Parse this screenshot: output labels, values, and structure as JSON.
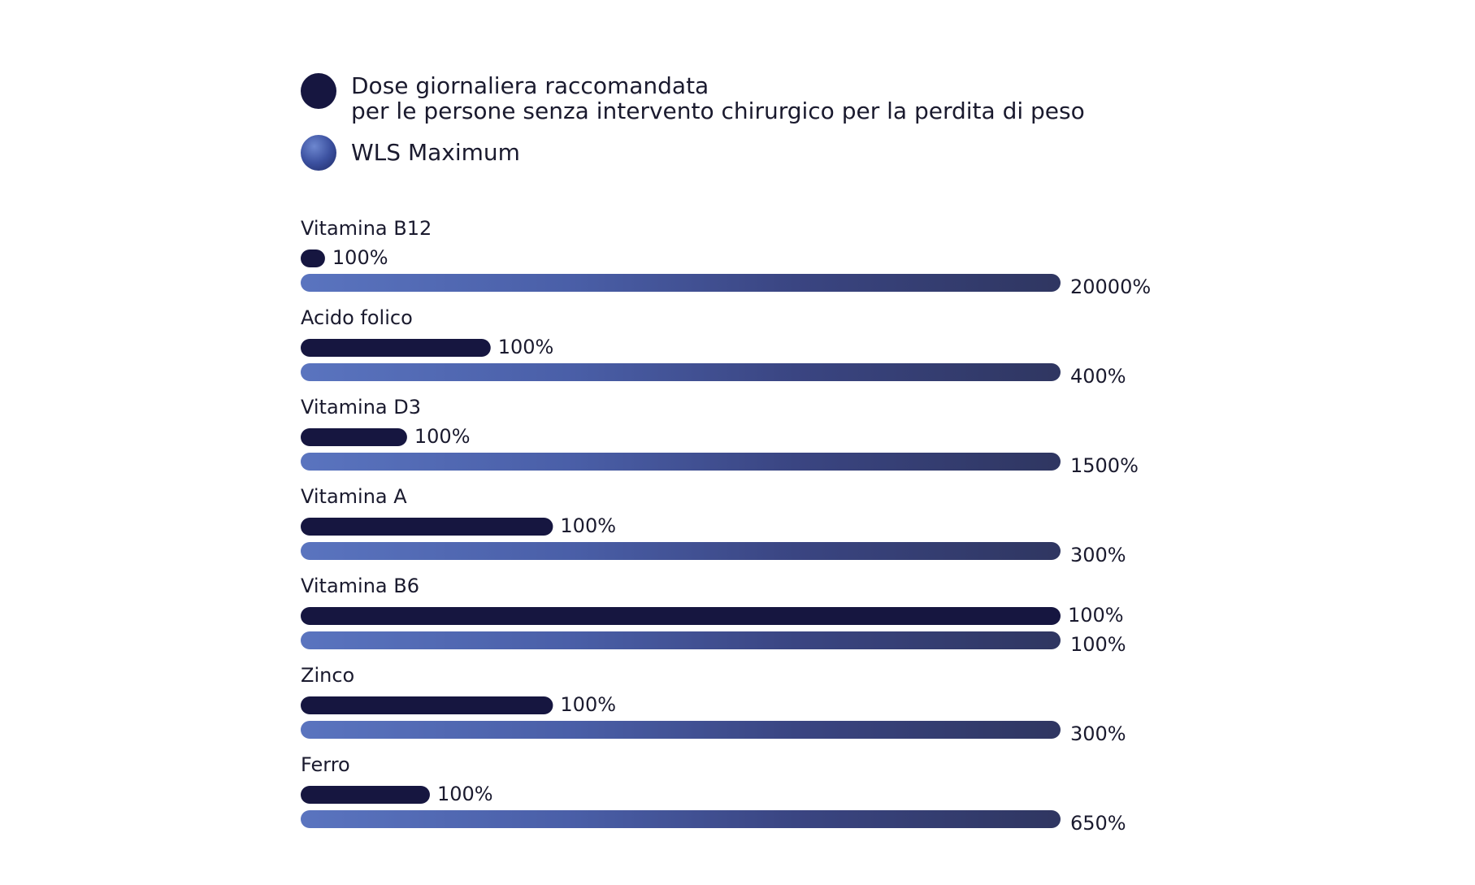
{
  "legend": {
    "rda_line1": "Dose giornaliera raccomandata",
    "rda_line2": "per le persone senza intervento chirurgico per la perdita di peso",
    "wls_label": "WLS Maximum"
  },
  "colors": {
    "rda": "#161640",
    "wls_start": "#5a74bf",
    "wls_end": "#2f3661"
  },
  "chart_data": {
    "type": "bar",
    "orientation": "horizontal",
    "grid": false,
    "legend_position": "top-left",
    "categories": [
      "Vitamina B12",
      "Acido folico",
      "Vitamina D3",
      "Vitamina A",
      "Vitamina B6",
      "Zinco",
      "Ferro"
    ],
    "series": [
      {
        "name": "Dose giornaliera raccomandata per le persone senza intervento chirurgico per la perdita di peso",
        "values": [
          100,
          100,
          100,
          100,
          100,
          100,
          100
        ],
        "labels": [
          "100%",
          "100%",
          "100%",
          "100%",
          "100%",
          "100%",
          "100%"
        ]
      },
      {
        "name": "WLS Maximum",
        "values": [
          20000,
          400,
          1500,
          300,
          100,
          300,
          650
        ],
        "labels": [
          "20000%",
          "400%",
          "1500%",
          "300%",
          "100%",
          "300%",
          "650%"
        ]
      }
    ]
  }
}
